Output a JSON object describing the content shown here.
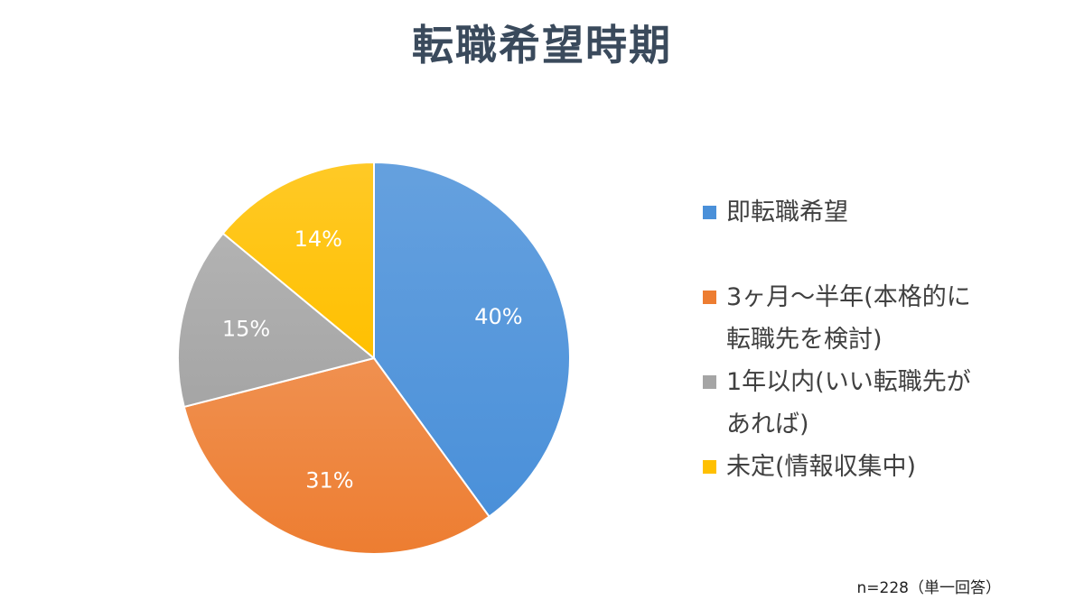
{
  "title": "転職希望時期",
  "note": "n=228（単一回答）",
  "chart_data": {
    "type": "pie",
    "title": "転職希望時期",
    "slices": [
      {
        "label": "即転職希望",
        "legend_lines": [
          "即転職希望"
        ],
        "value": 40,
        "value_label": "40%",
        "color": "#4a90d9"
      },
      {
        "label": "3ヶ月〜半年(本格的に転職先を検討)",
        "legend_lines": [
          "3ヶ月〜半年(本格的に",
          "転職先を検討)"
        ],
        "value": 31,
        "value_label": "31%",
        "color": "#ed7d31"
      },
      {
        "label": "1年以内(いい転職先があれば)",
        "legend_lines": [
          "1年以内(いい転職先が",
          "あれば)"
        ],
        "value": 15,
        "value_label": "15%",
        "color": "#a5a5a5"
      },
      {
        "label": "未定(情報収集中)",
        "legend_lines": [
          "未定(情報収集中)"
        ],
        "value": 14,
        "value_label": "14%",
        "color": "#ffc000"
      }
    ],
    "start": "12 o'clock",
    "direction": "clockwise",
    "legend_position": "right"
  }
}
